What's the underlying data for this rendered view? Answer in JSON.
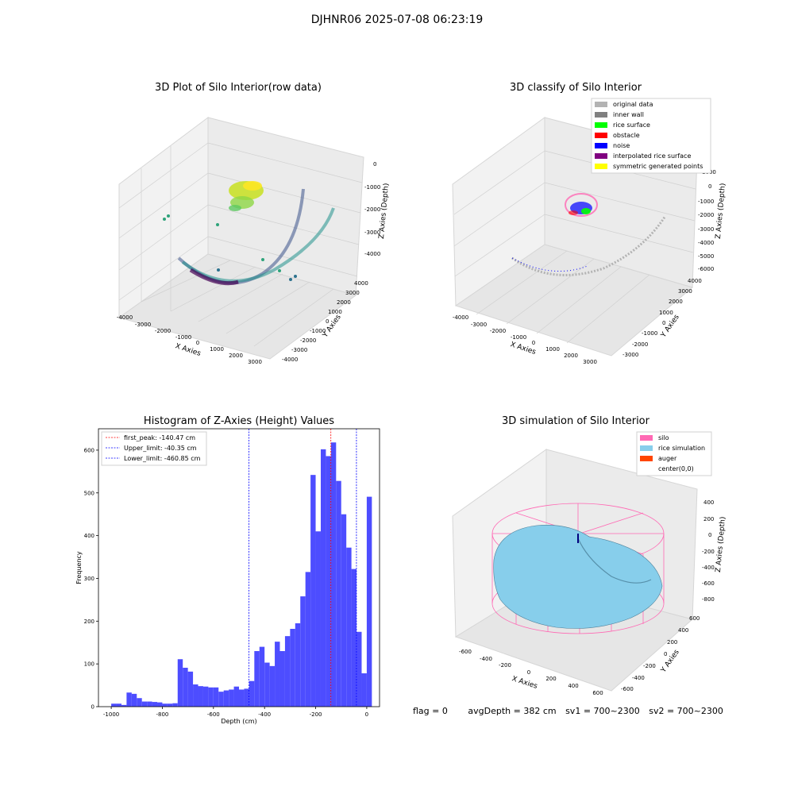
{
  "figure": {
    "title": "DJHNR06 2025-07-08 06:23:19"
  },
  "colors": {
    "hist_bar": "#4d4dff",
    "first_peak": "#ff0000",
    "limits": "#0000ff",
    "pane": "#f0f0f0",
    "grid": "#d0d0d0",
    "silo": "#ff69b4",
    "rice": "#87ceeb",
    "auger": "#ff4500"
  },
  "panels": {
    "raw": {
      "title": "3D Plot of Silo Interior(row data)",
      "xlabel": "X Axies",
      "ylabel": "Y Axies",
      "zlabel": "Z Axies (Depth)",
      "xticks": [
        "-4000",
        "-3000",
        "-2000",
        "-1000",
        "0",
        "1000",
        "2000",
        "3000"
      ],
      "yticks": [
        "-4000",
        "-3000",
        "-2000",
        "-1000",
        "0",
        "1000",
        "2000",
        "3000",
        "4000"
      ],
      "zticks": [
        "0",
        "-1000",
        "-2000",
        "-3000",
        "-4000"
      ]
    },
    "classify": {
      "title": "3D classify of Silo Interior",
      "xlabel": "X Axies",
      "ylabel": "Y Axies",
      "zlabel": "Z Axies (Depth)",
      "xticks": [
        "-4000",
        "-3000",
        "-2000",
        "-1000",
        "0",
        "1000",
        "2000",
        "3000"
      ],
      "yticks": [
        "-3000",
        "-2000",
        "-1000",
        "0",
        "1000",
        "2000",
        "3000",
        "4000"
      ],
      "zticks": [
        "1000",
        "0",
        "-1000",
        "-2000",
        "-3000",
        "-4000",
        "-5000",
        "-6000"
      ],
      "legend": [
        {
          "label": "original data",
          "color": "#b3b3b3"
        },
        {
          "label": "inner wall",
          "color": "#808080"
        },
        {
          "label": "rice surface",
          "color": "#00ff00"
        },
        {
          "label": "obstacle",
          "color": "#ff0000"
        },
        {
          "label": "noise",
          "color": "#0000ff"
        },
        {
          "label": "interpolated rice surface",
          "color": "#800080"
        },
        {
          "label": "symmetric generated points",
          "color": "#ffff00"
        }
      ]
    },
    "sim": {
      "title": "3D simulation of Silo Interior",
      "xlabel": "X Axies",
      "ylabel": "Y Axies",
      "zlabel": "Z Axies (Depth)",
      "xticks": [
        "-600",
        "-400",
        "-200",
        "0",
        "200",
        "400",
        "600"
      ],
      "yticks": [
        "-600",
        "-400",
        "-200",
        "0",
        "200",
        "400",
        "600"
      ],
      "zticks": [
        "400",
        "200",
        "0",
        "-200",
        "-400",
        "-600",
        "-800"
      ],
      "legend": [
        {
          "label": "silo",
          "color": "#ff69b4"
        },
        {
          "label": "rice simulation",
          "color": "#87ceeb"
        },
        {
          "label": "auger",
          "color": "#ff4500"
        },
        {
          "label": "center(0,0)",
          "color": "#ffffff"
        }
      ]
    }
  },
  "status": {
    "flag": "flag = 0",
    "avg_depth": "avgDepth = 382 cm",
    "sv1": "sv1 = 700~2300",
    "sv2": "sv2 = 700~2300"
  },
  "chart_data": {
    "type": "bar",
    "title": "Histogram of Z-Axies (Height) Values",
    "xlabel": "Depth (cm)",
    "ylabel": "Frequency",
    "xlim": [
      -1050,
      50
    ],
    "ylim": [
      0,
      650
    ],
    "xticks": [
      -1000,
      -800,
      -600,
      -400,
      -200,
      0
    ],
    "yticks": [
      0,
      100,
      200,
      300,
      400,
      500,
      600
    ],
    "bin_start": -1000,
    "bin_width": 20,
    "values": [
      7,
      7,
      4,
      33,
      30,
      20,
      12,
      12,
      11,
      10,
      7,
      7,
      8,
      111,
      91,
      82,
      52,
      48,
      47,
      45,
      45,
      35,
      38,
      40,
      47,
      40,
      42,
      60,
      130,
      140,
      103,
      95,
      152,
      130,
      165,
      182,
      195,
      258,
      315,
      542,
      410,
      602,
      586,
      618,
      528,
      450,
      372,
      322,
      175,
      78,
      491
    ],
    "lines": [
      {
        "label": "first_peak: -140.47 cm",
        "x": -140.47,
        "color": "#ff0000"
      },
      {
        "label": "Upper_limit: -40.35 cm",
        "x": -40.35,
        "color": "#0000ff"
      },
      {
        "label": "Lower_limit: -460.85 cm",
        "x": -460.85,
        "color": "#0000ff"
      }
    ]
  }
}
